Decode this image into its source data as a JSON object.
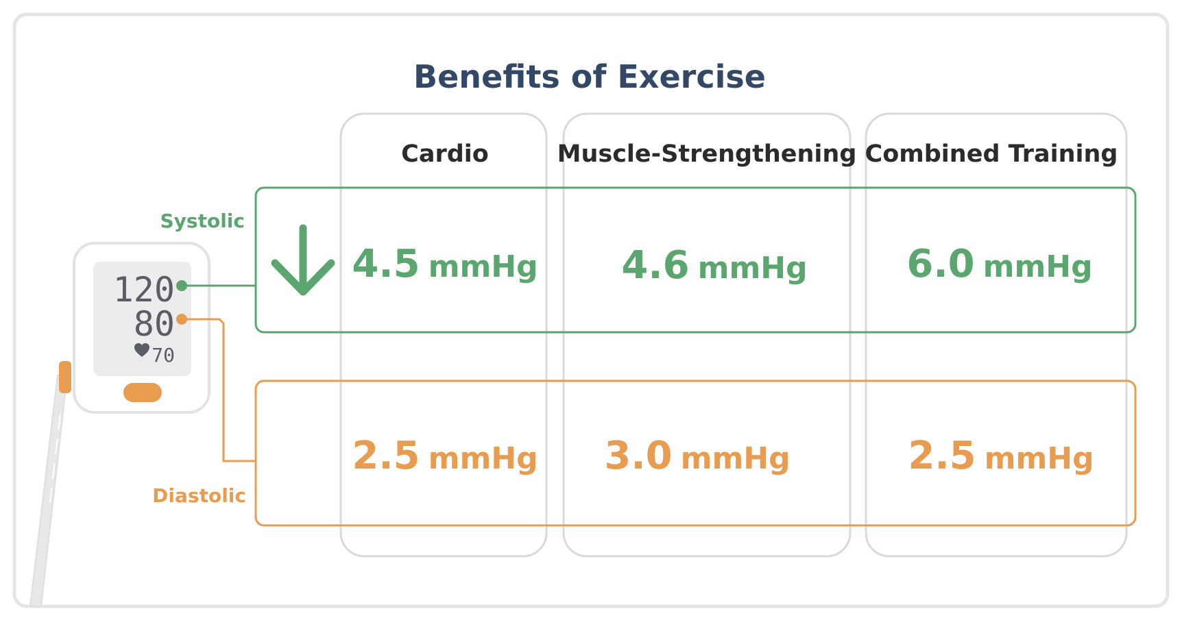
{
  "title": "Benefits of Exercise",
  "columns": [
    "Cardio",
    "Muscle-Strengthening",
    "Combined Training"
  ],
  "rows": [
    {
      "label": "Systolic",
      "color": "#5ba56e",
      "values": [
        {
          "number": "4.5",
          "unit": "mmHg"
        },
        {
          "number": "4.6",
          "unit": "mmHg"
        },
        {
          "number": "6.0",
          "unit": "mmHg"
        }
      ]
    },
    {
      "label": "Diastolic",
      "color": "#e79c4f",
      "values": [
        {
          "number": "2.5",
          "unit": "mmHg"
        },
        {
          "number": "3.0",
          "unit": "mmHg"
        },
        {
          "number": "2.5",
          "unit": "mmHg"
        }
      ]
    }
  ],
  "monitor": {
    "systolic_reading": "120",
    "diastolic_reading": "80",
    "pulse_reading": "70"
  },
  "icons": {
    "arrow": "down-arrow-icon",
    "heart": "heart-icon"
  },
  "colors": {
    "title": "#334866",
    "frame": "#e3e5e8",
    "column_border": "#d9d9d9",
    "systolic": "#5ba56e",
    "diastolic": "#e79c4f"
  }
}
